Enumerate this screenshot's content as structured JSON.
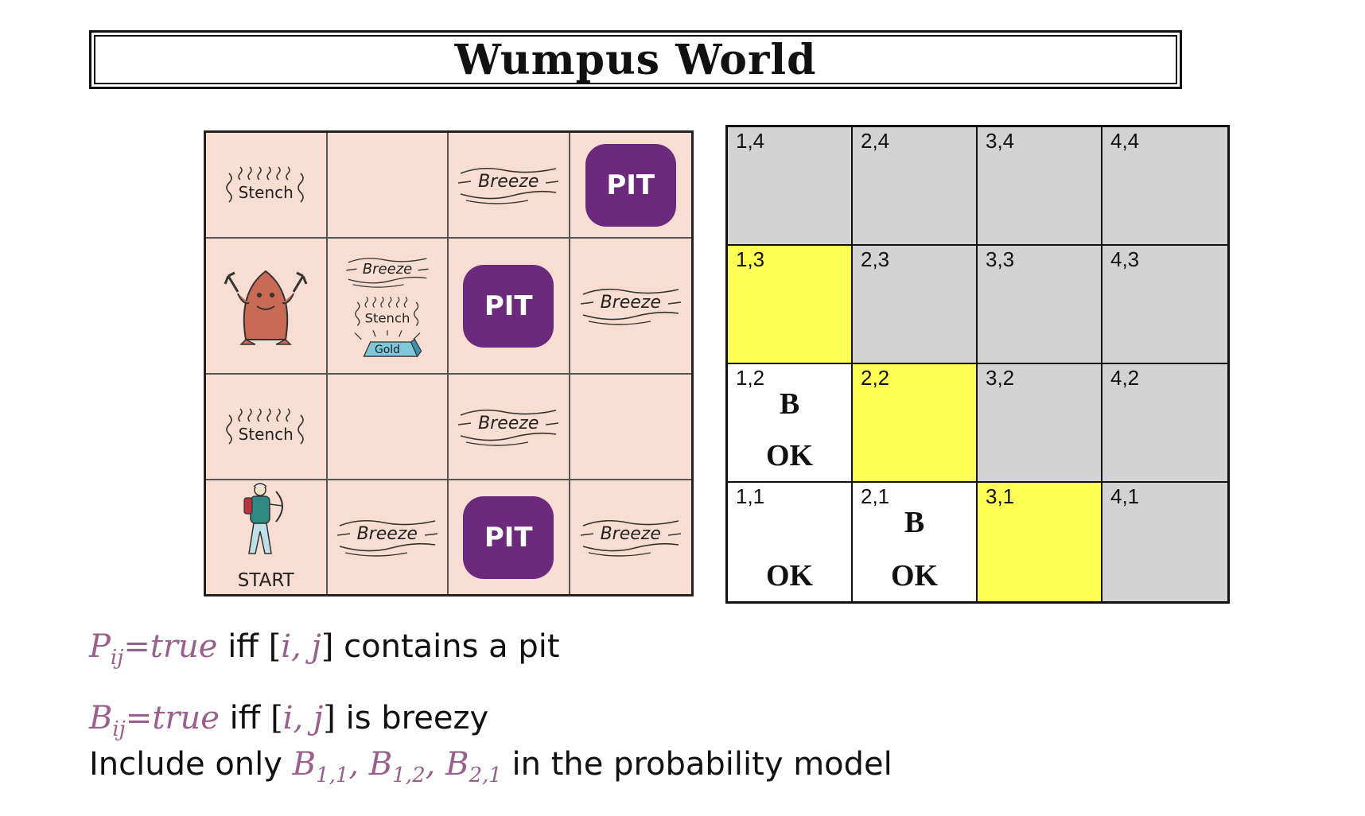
{
  "title": "Wumpus World",
  "world_grid": {
    "labels": {
      "stench": "Stench",
      "breeze": "Breeze",
      "pit": "PIT",
      "gold": "Gold",
      "start": "START"
    },
    "rows": [
      [
        {
          "items": [
            "stench"
          ]
        },
        {
          "items": []
        },
        {
          "items": [
            "breeze"
          ]
        },
        {
          "items": [
            "pit"
          ]
        }
      ],
      [
        {
          "items": [
            "wumpus"
          ]
        },
        {
          "items": [
            "breeze",
            "stench",
            "gold"
          ]
        },
        {
          "items": [
            "pit"
          ]
        },
        {
          "items": [
            "breeze"
          ]
        }
      ],
      [
        {
          "items": [
            "stench"
          ]
        },
        {
          "items": []
        },
        {
          "items": [
            "breeze"
          ]
        },
        {
          "items": []
        }
      ],
      [
        {
          "items": [
            "agent",
            "start"
          ]
        },
        {
          "items": [
            "breeze"
          ]
        },
        {
          "items": [
            "pit"
          ]
        },
        {
          "items": [
            "breeze"
          ]
        }
      ]
    ],
    "colors": {
      "background": "#f8ddd2",
      "pit": "#6b2a7c"
    }
  },
  "knowledge_grid": {
    "rows": [
      [
        {
          "coord": "1,4",
          "fill": "gray"
        },
        {
          "coord": "2,4",
          "fill": "gray"
        },
        {
          "coord": "3,4",
          "fill": "gray"
        },
        {
          "coord": "4,4",
          "fill": "gray"
        }
      ],
      [
        {
          "coord": "1,3",
          "fill": "yellow"
        },
        {
          "coord": "2,3",
          "fill": "gray"
        },
        {
          "coord": "3,3",
          "fill": "gray"
        },
        {
          "coord": "4,3",
          "fill": "gray"
        }
      ],
      [
        {
          "coord": "1,2",
          "fill": "white",
          "b": "B",
          "ok": "OK"
        },
        {
          "coord": "2,2",
          "fill": "yellow"
        },
        {
          "coord": "3,2",
          "fill": "gray"
        },
        {
          "coord": "4,2",
          "fill": "gray"
        }
      ],
      [
        {
          "coord": "1,1",
          "fill": "white",
          "ok": "OK"
        },
        {
          "coord": "2,1",
          "fill": "white",
          "b": "B",
          "ok": "OK"
        },
        {
          "coord": "3,1",
          "fill": "yellow"
        },
        {
          "coord": "4,1",
          "fill": "gray"
        }
      ]
    ],
    "colors": {
      "gray": "#d3d3d3",
      "yellow": "#ffff55",
      "white": "#ffffff"
    }
  },
  "definitions": {
    "pit_def": {
      "var": "P",
      "sub": "ij",
      "eq": "=",
      "val": "true",
      "iff": "iff",
      "bracket_open": "[",
      "ij": "i, j",
      "bracket_close": "]",
      "rest": "contains a pit"
    },
    "breeze_def": {
      "var": "B",
      "sub": "ij",
      "eq": "=",
      "val": "true",
      "iff": "iff",
      "bracket_open": "[",
      "ij": "i, j",
      "bracket_close": "]",
      "rest": "is breezy"
    },
    "include_line": {
      "prefix": "Include only",
      "terms": [
        {
          "var": "B",
          "sub": "1,1"
        },
        {
          "var": "B",
          "sub": "1,2"
        },
        {
          "var": "B",
          "sub": "2,1"
        }
      ],
      "sep": ",",
      "suffix": "in the probability model"
    },
    "math_color": "#9a5f8d"
  }
}
